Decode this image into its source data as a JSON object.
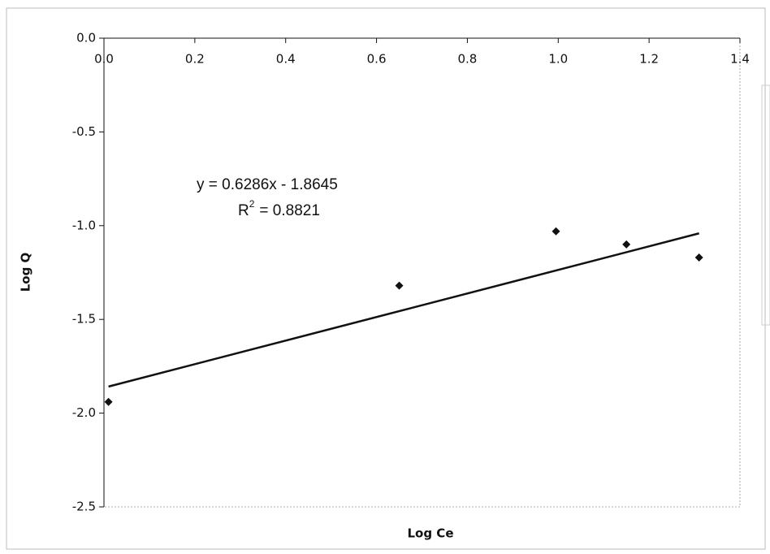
{
  "chart_data": {
    "type": "scatter",
    "x_label": "Log Ce",
    "y_label": "Log Q",
    "series": [
      {
        "name": "Log Q",
        "color": "#111111",
        "x": [
          0.01,
          0.65,
          0.995,
          1.15,
          1.31
        ],
        "values": [
          -1.94,
          -1.32,
          -1.03,
          -1.1,
          -1.17
        ]
      }
    ],
    "trendline": {
      "slope": 0.6286,
      "intercept": -1.8645,
      "x_range": [
        0.01,
        1.31
      ],
      "color": "#111111",
      "equation": "y = 0.6286x - 1.8645",
      "r2_symbol": "R",
      "r2_exponent": "2",
      "r2_text": "= 0.8821"
    },
    "xlim": [
      0,
      1.4
    ],
    "xticks": [
      {
        "value": 0,
        "label": "0.0"
      },
      {
        "value": 0.2,
        "label": "0.2"
      },
      {
        "value": 0.4,
        "label": "0.4"
      },
      {
        "value": 0.6,
        "label": "0.6"
      },
      {
        "value": 0.8,
        "label": "0.8"
      },
      {
        "value": 1.0,
        "label": "1.0"
      },
      {
        "value": 1.2,
        "label": "1.2"
      },
      {
        "value": 1.4,
        "label": "1.4"
      }
    ],
    "ylim": [
      -2.5,
      0
    ],
    "yticks": [
      {
        "value": 0,
        "label": "0.0"
      },
      {
        "value": -0.5,
        "label": "-0.5"
      },
      {
        "value": -1.0,
        "label": "-1.0"
      },
      {
        "value": -1.5,
        "label": "-1.5"
      },
      {
        "value": -2.0,
        "label": "-2.0"
      },
      {
        "value": -2.5,
        "label": "-2.5"
      }
    ]
  }
}
